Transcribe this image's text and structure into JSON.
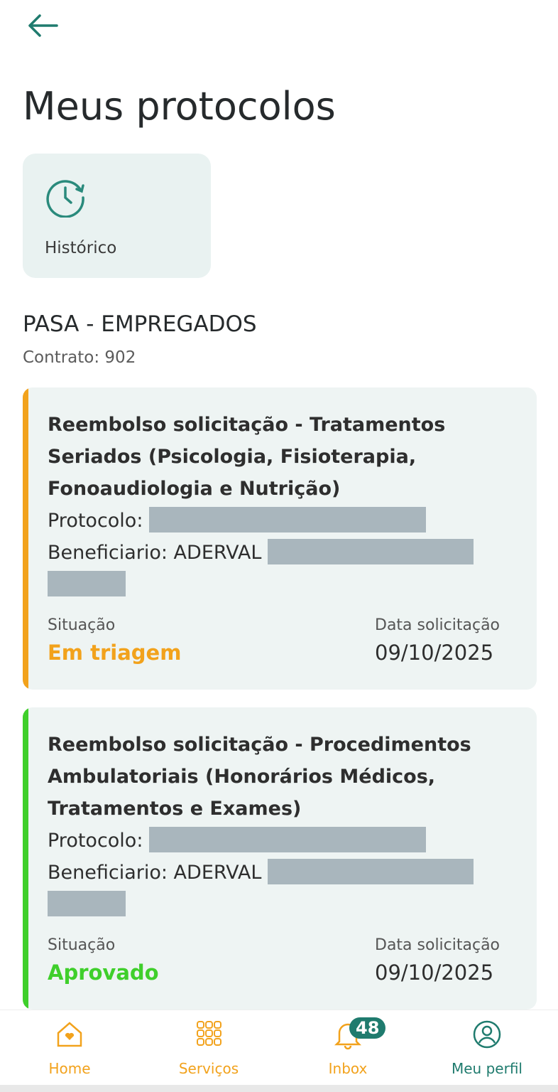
{
  "header": {
    "title": "Meus protocolos"
  },
  "history_button": {
    "label": "Histórico"
  },
  "section": {
    "title": "PASA - EMPREGADOS",
    "contract": "Contrato: 902"
  },
  "cards": [
    {
      "title": "Reembolso solicitação - Tratamentos Seriados (Psicologia, Fisioterapia, Fonoaudiologia e Nutrição)",
      "protocol_label": "Protocolo:",
      "beneficiary_label": "Beneficiario: ADERVAL",
      "status_label": "Situação",
      "status": "Em triagem",
      "date_label": "Data solicitação",
      "date": "09/10/2025"
    },
    {
      "title": "Reembolso solicitação - Procedimentos Ambulatoriais (Honorários Médicos, Tratamentos e Exames)",
      "protocol_label": "Protocolo:",
      "beneficiary_label": "Beneficiario: ADERVAL",
      "status_label": "Situação",
      "status": "Aprovado",
      "date_label": "Data solicitação",
      "date": "09/10/2025"
    }
  ],
  "nav": {
    "items": [
      "Home",
      "Serviços",
      "Inbox",
      "Meu perfil"
    ],
    "inbox_badge": 48
  }
}
